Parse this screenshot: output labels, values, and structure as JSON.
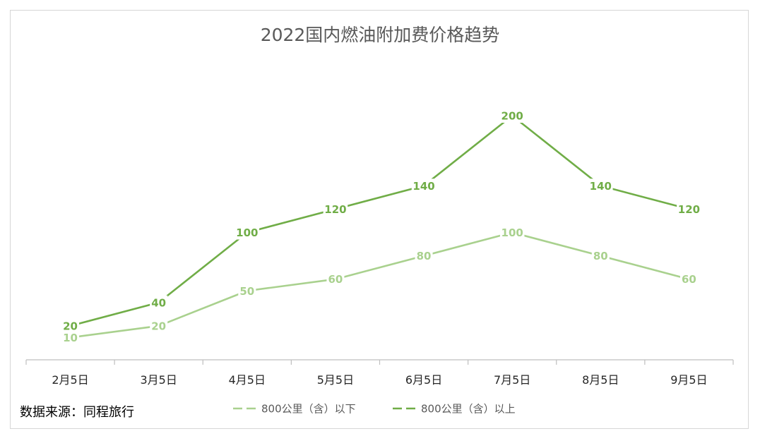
{
  "source_note": "数据来源：同程旅行",
  "chart_data": {
    "type": "line",
    "title": "2022国内燃油附加费价格趋势",
    "categories": [
      "2月5日",
      "3月5日",
      "4月5日",
      "5月5日",
      "6月5日",
      "7月5日",
      "8月5日",
      "9月5日"
    ],
    "ylim": [
      0,
      220
    ],
    "grid": false,
    "legend_position": "bottom",
    "series": [
      {
        "name": "800公里（含）以下",
        "values": [
          10,
          20,
          50,
          60,
          80,
          100,
          80,
          60
        ],
        "color": "#a9d18e"
      },
      {
        "name": "800公里（含）以上",
        "values": [
          20,
          40,
          100,
          120,
          140,
          200,
          140,
          120
        ],
        "color": "#70ad47"
      }
    ]
  }
}
